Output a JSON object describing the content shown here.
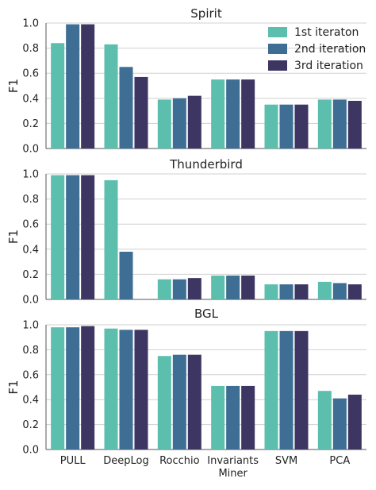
{
  "chart_data": {
    "type": "bar",
    "categories": [
      "PULL",
      "DeepLog",
      "Rocchio",
      "Invariants Miner",
      "SVM",
      "PCA"
    ],
    "category_lines": [
      [
        "PULL"
      ],
      [
        "DeepLog"
      ],
      [
        "Rocchio"
      ],
      [
        "Invariants",
        "Miner"
      ],
      [
        "SVM"
      ],
      [
        "PCA"
      ]
    ],
    "legend": {
      "placement": "top-right",
      "entries": [
        "1st iteraton",
        "2nd iteration",
        "3rd iteration"
      ]
    },
    "colors": [
      "#5cbfad",
      "#3e6e93",
      "#3d3663"
    ],
    "ylabel": "F1",
    "ylim": [
      0,
      1.0
    ],
    "yticks": [
      "0.0",
      "0.2",
      "0.4",
      "0.6",
      "0.8",
      "1.0"
    ],
    "grid": true,
    "panels": [
      {
        "title": "Spirit",
        "series": [
          {
            "name": "1st iteraton",
            "values": [
              0.84,
              0.83,
              0.39,
              0.55,
              0.35,
              0.39
            ]
          },
          {
            "name": "2nd iteration",
            "values": [
              0.99,
              0.65,
              0.4,
              0.55,
              0.35,
              0.39
            ]
          },
          {
            "name": "3rd iteration",
            "values": [
              0.99,
              0.57,
              0.42,
              0.55,
              0.35,
              0.38
            ]
          }
        ]
      },
      {
        "title": "Thunderbird",
        "series": [
          {
            "name": "1st iteraton",
            "values": [
              0.99,
              0.95,
              0.16,
              0.19,
              0.12,
              0.14
            ]
          },
          {
            "name": "2nd iteration",
            "values": [
              0.99,
              0.38,
              0.16,
              0.19,
              0.12,
              0.13
            ]
          },
          {
            "name": "3rd iteration",
            "values": [
              0.99,
              0.0,
              0.17,
              0.19,
              0.12,
              0.12
            ]
          }
        ]
      },
      {
        "title": "BGL",
        "series": [
          {
            "name": "1st iteraton",
            "values": [
              0.98,
              0.97,
              0.75,
              0.51,
              0.95,
              0.47
            ]
          },
          {
            "name": "2nd iteration",
            "values": [
              0.98,
              0.96,
              0.76,
              0.51,
              0.95,
              0.41
            ]
          },
          {
            "name": "3rd iteration",
            "values": [
              0.99,
              0.96,
              0.76,
              0.51,
              0.95,
              0.44
            ]
          }
        ]
      }
    ]
  }
}
